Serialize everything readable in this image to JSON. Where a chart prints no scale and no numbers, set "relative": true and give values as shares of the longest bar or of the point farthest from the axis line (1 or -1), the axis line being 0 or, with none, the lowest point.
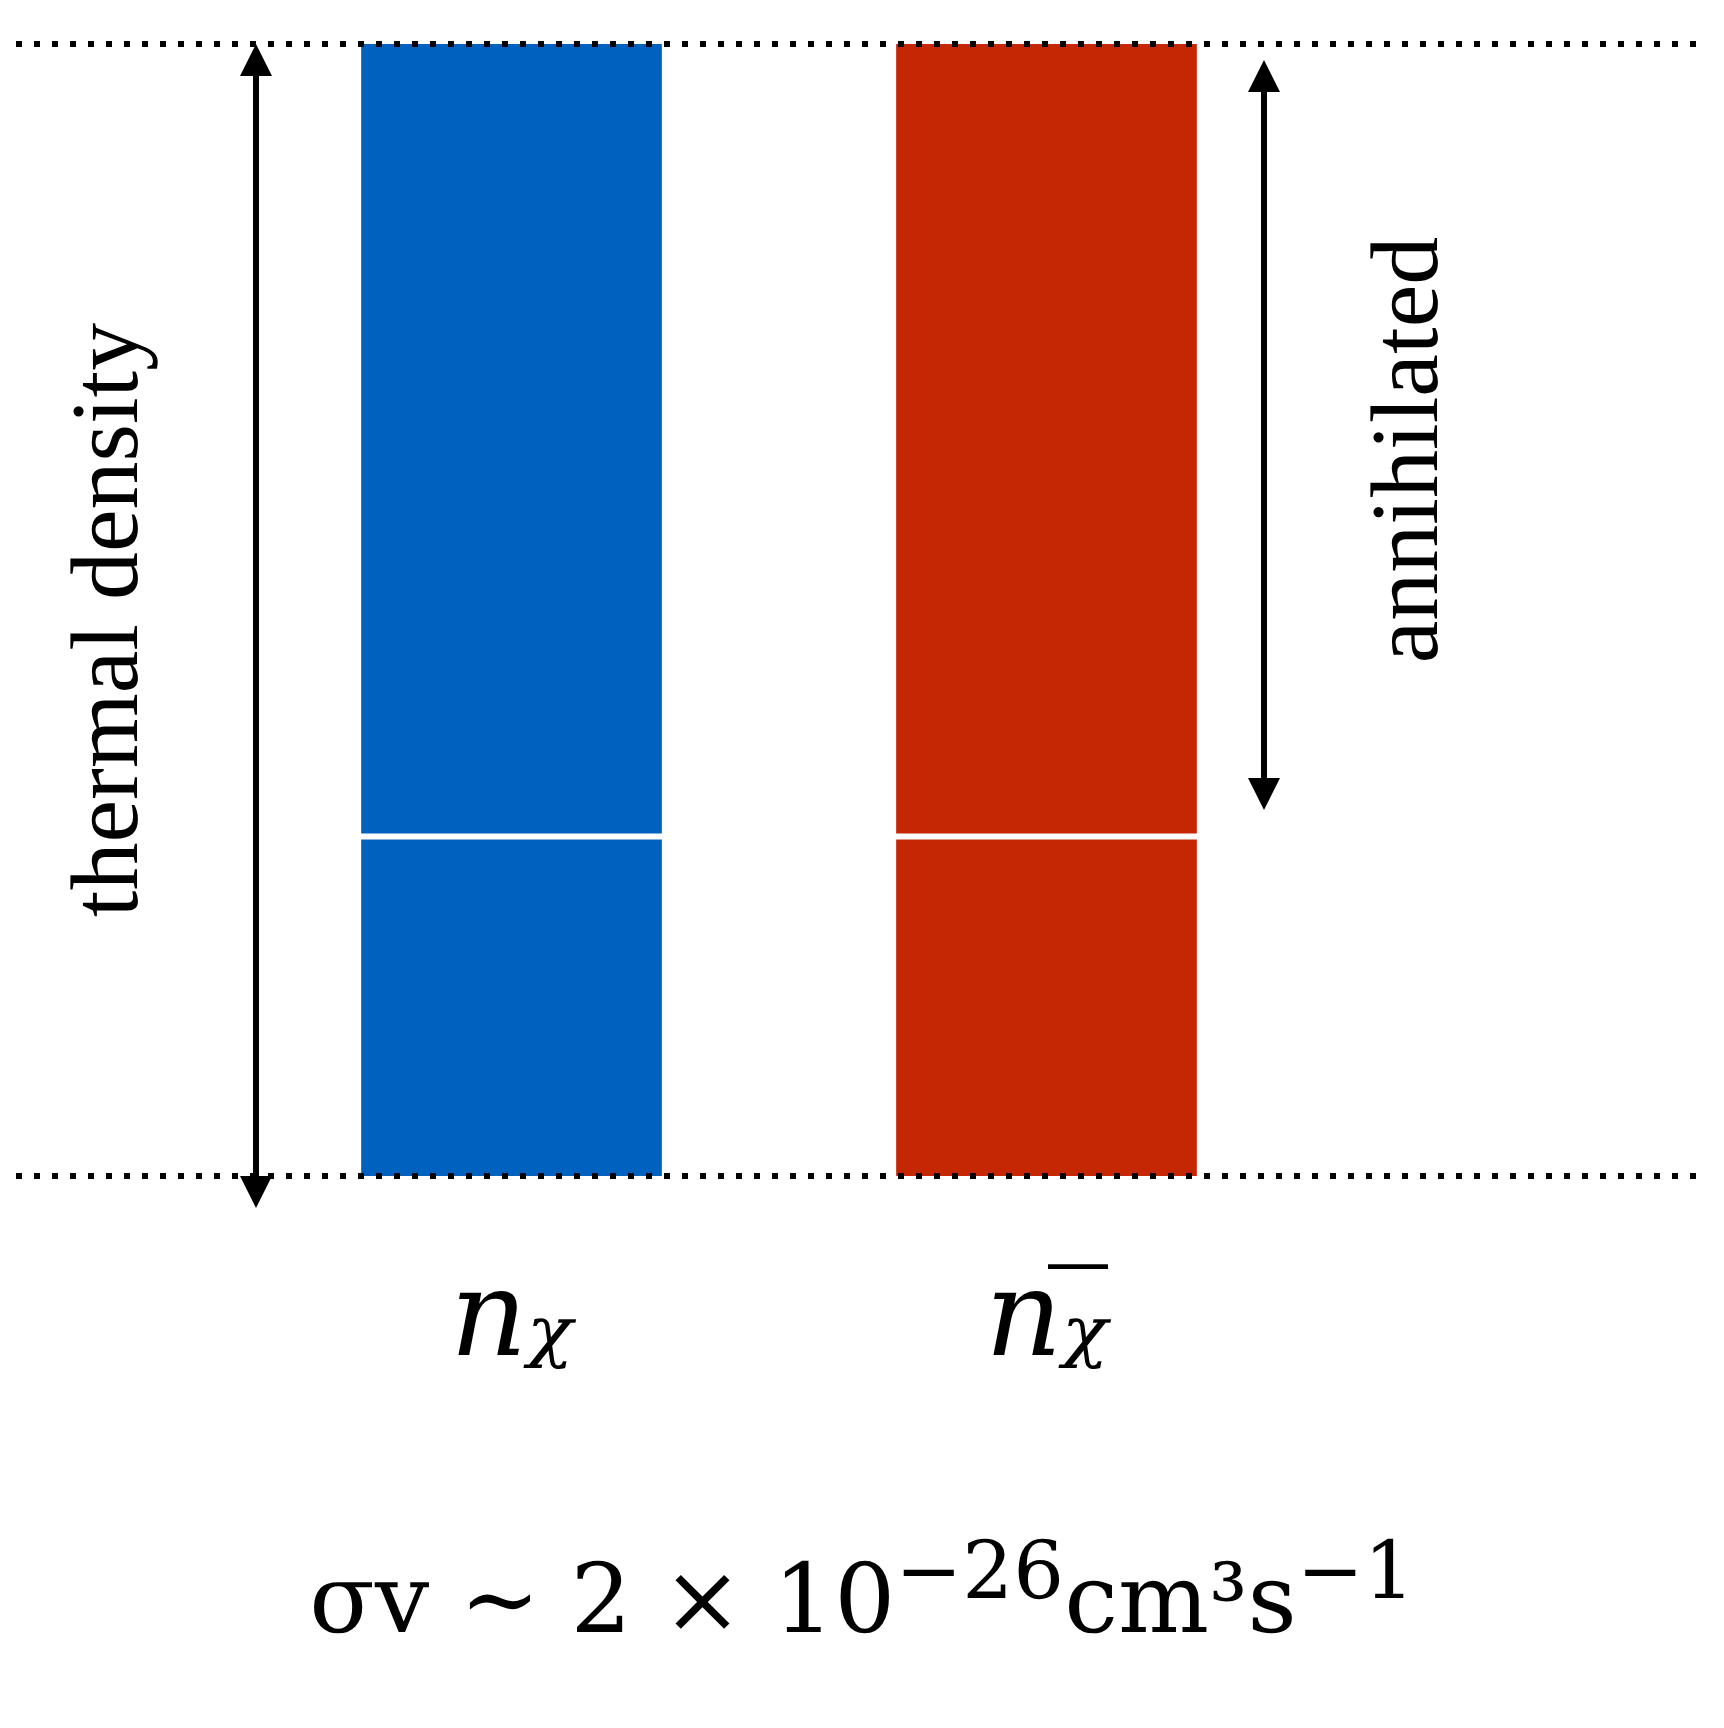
{
  "chart_data": {
    "type": "bar",
    "relative": true,
    "stacked": true,
    "legend": false,
    "grid": false,
    "categories": [
      "nᵪ",
      "nᵪ̅"
    ],
    "series": [
      {
        "colors": [
          "#0062be",
          "#c52604"
        ],
        "values": [
          0.3,
          0.3
        ]
      },
      {
        "colors": [
          "#0062be",
          "#c52604"
        ],
        "values": [
          0.7,
          0.7
        ]
      }
    ],
    "ref_lines": [
      {
        "axis": "y",
        "value": 0.3,
        "line_style": "solid",
        "color": "#ffffff"
      },
      {
        "axis": "y",
        "value": 0,
        "line_style": "dotted",
        "color": "#000000"
      },
      {
        "axis": "y",
        "value": 1,
        "line_style": "dotted",
        "color": "#000000"
      }
    ],
    "annotations": [
      "thermal density",
      "annihilated",
      "σv ∼ 2 × 10$^{−26}$cm³s$^{−1}$"
    ]
  }
}
